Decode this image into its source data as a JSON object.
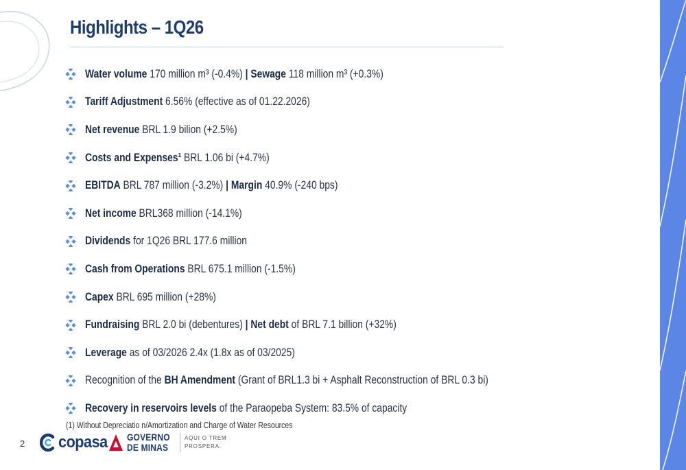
{
  "slide": {
    "title": "Highlights – 1Q26",
    "page_number": "2",
    "footnote": "(1) Without Depreciatio n/Amortization and Charge of Water Resources"
  },
  "bullets": [
    {
      "segments": [
        {
          "text": "Water volume",
          "bold": true
        },
        {
          "text": " 170 million m³ (-0.4%) ",
          "bold": false
        },
        {
          "text": "| Sewage",
          "bold": true
        },
        {
          "text": " 118 million m³ (+0.3%)",
          "bold": false
        }
      ]
    },
    {
      "segments": [
        {
          "text": "Tariff Adjustment",
          "bold": true
        },
        {
          "text": " 6.56% (effective as of 01.22.2026)",
          "bold": false
        }
      ]
    },
    {
      "segments": [
        {
          "text": "Net revenue",
          "bold": true
        },
        {
          "text": " BRL 1.9 bilion (+2.5%)",
          "bold": false
        }
      ]
    },
    {
      "segments": [
        {
          "text": "Costs and Expenses¹",
          "bold": true
        },
        {
          "text": " BRL 1.06 bi (+4.7%)",
          "bold": false
        }
      ]
    },
    {
      "segments": [
        {
          "text": "EBITDA",
          "bold": true
        },
        {
          "text": " BRL  787 million (-3.2%) ",
          "bold": false
        },
        {
          "text": "| Margin",
          "bold": true
        },
        {
          "text": " 40.9% (-240 bps)",
          "bold": false
        }
      ]
    },
    {
      "segments": [
        {
          "text": "Net income",
          "bold": true
        },
        {
          "text": " BRL368 million (-14.1%)",
          "bold": false
        }
      ]
    },
    {
      "segments": [
        {
          "text": "Dividends",
          "bold": true
        },
        {
          "text": " for 1Q26 BRL 177.6 million",
          "bold": false
        }
      ]
    },
    {
      "segments": [
        {
          "text": "Cash from Operations",
          "bold": true
        },
        {
          "text": " BRL 675.1 million (-1.5%)",
          "bold": false
        }
      ]
    },
    {
      "segments": [
        {
          "text": "Capex",
          "bold": true
        },
        {
          "text": " BRL 695 million (+28%)",
          "bold": false
        }
      ]
    },
    {
      "segments": [
        {
          "text": "Fundraising",
          "bold": true
        },
        {
          "text": " BRL 2.0 bi (debentures) ",
          "bold": false
        },
        {
          "text": "| Net debt",
          "bold": true
        },
        {
          "text": " of BRL 7.1 billion (+32%)",
          "bold": false
        }
      ]
    },
    {
      "segments": [
        {
          "text": "Leverage",
          "bold": true
        },
        {
          "text": " as of 03/2026 2.4x (1.8x as of 03/2025)",
          "bold": false
        }
      ]
    },
    {
      "segments": [
        {
          "text": "Recognition of the ",
          "bold": false
        },
        {
          "text": "BH Amendment",
          "bold": true
        },
        {
          "text": " (Grant of BRL1.3 bi + Asphalt Reconstruction of BRL 0.3 bi)",
          "bold": false
        }
      ]
    },
    {
      "segments": [
        {
          "text": "Recovery in reservoirs levels",
          "bold": true
        },
        {
          "text": " of the Paraopeba System: 83.5% of capacity",
          "bold": false
        }
      ]
    }
  ],
  "logos": {
    "copasa": {
      "wordmark": "copasa"
    },
    "governo": {
      "line1": "GOVERNO",
      "line2": "DE MINAS",
      "slogan1": "AQUI O TREM",
      "slogan2": "PROSPERA."
    }
  },
  "icons": {
    "bullet": "diamond-cluster-icon"
  },
  "colors": {
    "title": "#1f3c6e",
    "bullet_icon": "#5b8fd6",
    "accent_band": "#5b86e5",
    "copasa_blue": "#1d3a6d",
    "governo_red": "#c8102e"
  }
}
